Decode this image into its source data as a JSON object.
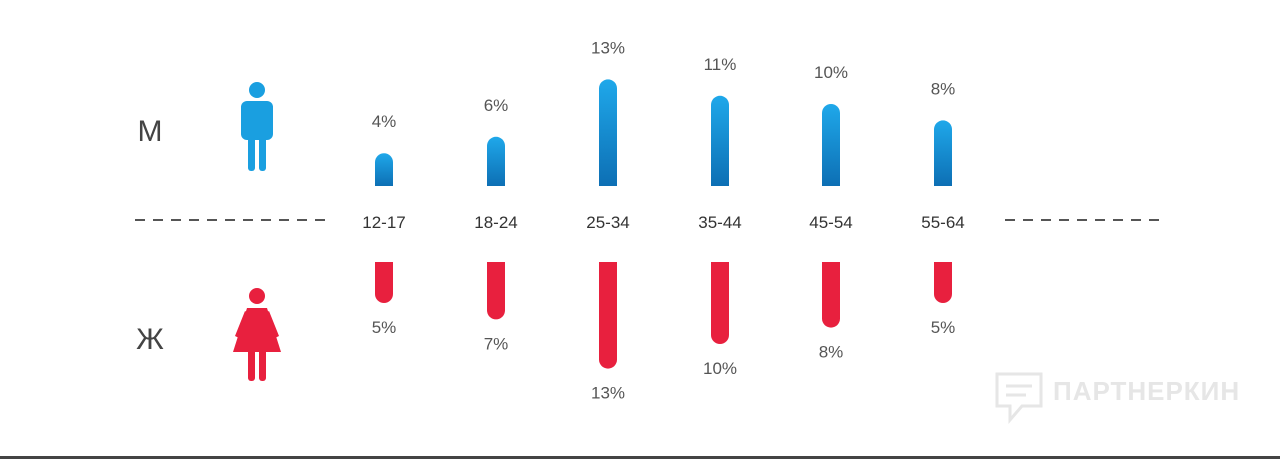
{
  "chart_data": {
    "type": "bar",
    "categories": [
      "12-17",
      "18-24",
      "25-34",
      "35-44",
      "45-54",
      "55-64"
    ],
    "series": [
      {
        "name": "М",
        "values": [
          4,
          6,
          13,
          11,
          10,
          8
        ],
        "labels": [
          "4%",
          "6%",
          "13%",
          "11%",
          "10%",
          "8%"
        ],
        "color": "#1a9fe0"
      },
      {
        "name": "Ж",
        "values": [
          5,
          7,
          13,
          10,
          8,
          5
        ],
        "labels": [
          "5%",
          "7%",
          "13%",
          "10%",
          "8%",
          "5%"
        ],
        "color": "#e8203e"
      }
    ],
    "title": "",
    "xlabel": "",
    "ylabel": "",
    "ylim": [
      0,
      13
    ],
    "legend": "left"
  },
  "icons": {
    "male": "man-icon",
    "female": "woman-icon",
    "watermark": "chat-logo-icon"
  },
  "watermark": {
    "text": "ПАРТНЕРКИН"
  },
  "colors": {
    "male_top": "#1fa8ea",
    "male_bottom": "#0d6fb4",
    "female": "#e8203e",
    "dash": "#555555"
  }
}
